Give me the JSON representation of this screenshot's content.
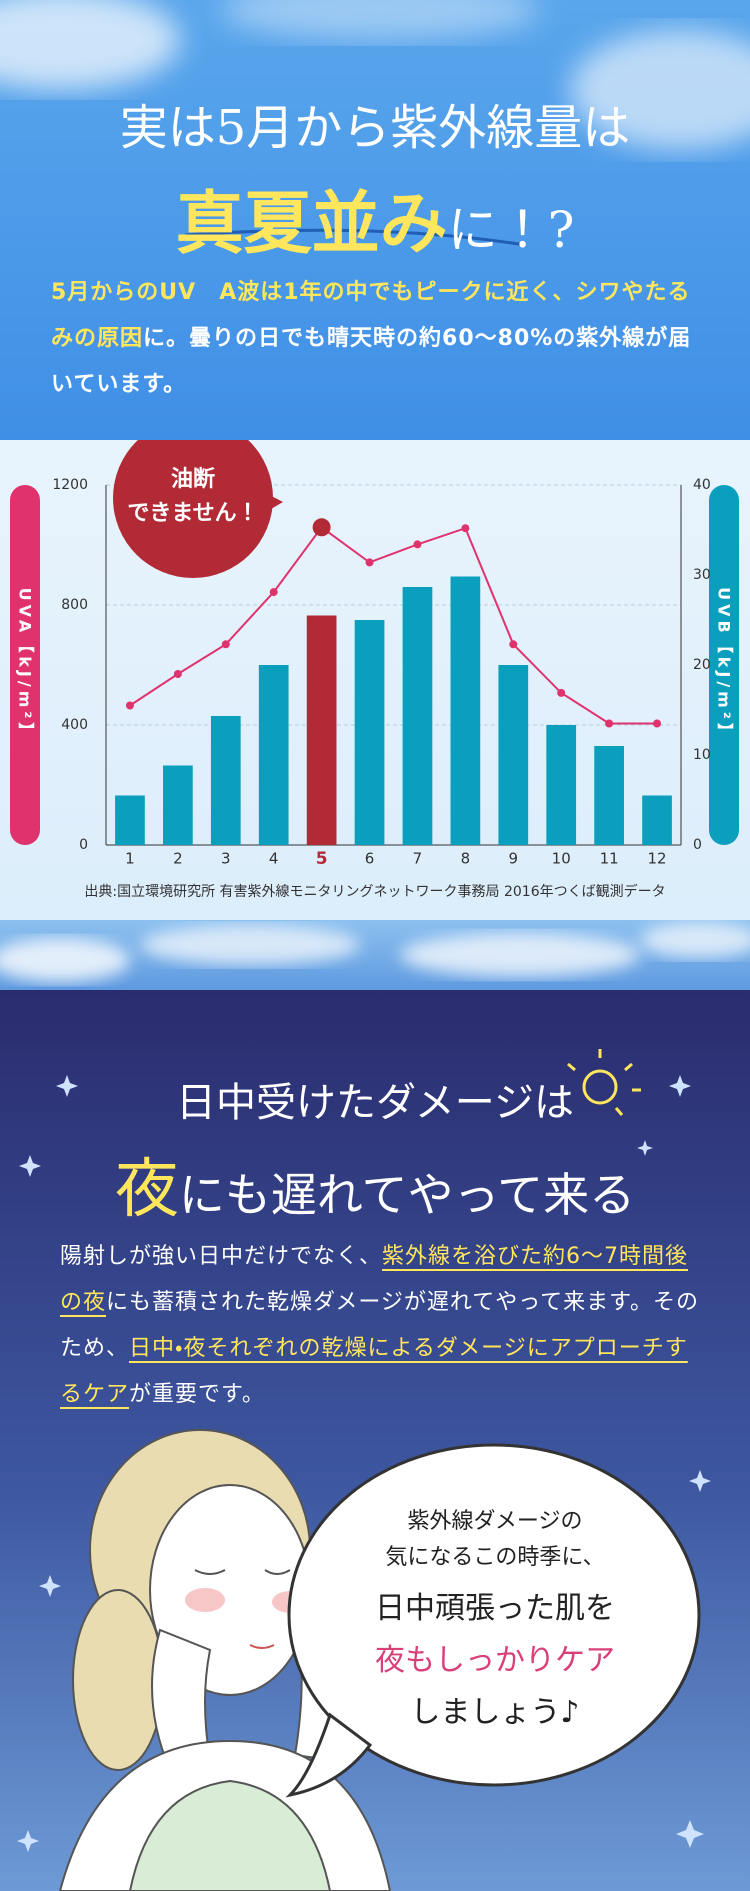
{
  "header": {
    "title_line1": "実は5月から紫外線量は",
    "title_line2": [
      {
        "text": "真夏並み",
        "emphasis": true
      },
      {
        "text": "に！?",
        "emphasis": false
      }
    ]
  },
  "intro": {
    "segments": [
      {
        "text": "5月からのUV　A波は1年の中でもピークに近く、シワやたるみの原因",
        "emphasis": true
      },
      {
        "text": "に。曇りの日でも晴天時の約60〜80%の紫外線が届いています。",
        "emphasis": false
      }
    ]
  },
  "chart_data": {
    "type": "bar",
    "categories": [
      "1",
      "2",
      "3",
      "4",
      "5",
      "6",
      "7",
      "8",
      "9",
      "10",
      "11",
      "12"
    ],
    "series": [
      {
        "type": "bar",
        "color": "#0a9fbd",
        "colors": [
          "#0a9fbd",
          "#0a9fbd",
          "#0a9fbd",
          "#0a9fbd",
          "#b22a35",
          "#0a9fbd",
          "#0a9fbd",
          "#0a9fbd",
          "#0a9fbd",
          "#0a9fbd",
          "#0a9fbd",
          "#0a9fbd"
        ],
        "values": [
          165,
          265,
          430,
          600,
          765,
          750,
          860,
          895,
          600,
          400,
          330,
          165
        ]
      },
      {
        "type": "line",
        "axis": "y2",
        "color": "#e0336e",
        "values": [
          15.5,
          19,
          22.3,
          28.1,
          35.3,
          31.4,
          33.4,
          35.2,
          22.3,
          16.9,
          13.5,
          13.5
        ]
      }
    ],
    "ylim": [
      0,
      1200
    ],
    "yticks": [
      0,
      400,
      800,
      1200
    ],
    "y2lim": [
      0,
      40
    ],
    "y2ticks": [
      0,
      10,
      20,
      30,
      40
    ],
    "ylabel": "UVA【kJ/m²】",
    "y2label": "UVB【kJ/m²】",
    "annotation": [
      "油断",
      "できません！"
    ],
    "source": "出典:国立環境研究所 有害紫外線モニタリングネットワーク事務局 2016年つくば観測データ",
    "grid": true
  },
  "section2": {
    "title_line1": "日中受けたダメージは",
    "title_line2": [
      {
        "text": "夜",
        "emphasis": true
      },
      {
        "text": "にも遅れてやって来る",
        "emphasis": false
      }
    ],
    "body": {
      "segments": [
        {
          "text": "陽射しが強い日中だけでなく、",
          "emphasis": false
        },
        {
          "text": "紫外線を浴びた約6〜7時間後の夜",
          "emphasis": true
        },
        {
          "text": "にも蓄積された乾燥ダメージが遅れてやって来ます。そのため、",
          "emphasis": false
        },
        {
          "text": "日中・夜それぞれの乾燥によるダメージにアプローチするケア",
          "emphasis": true
        },
        {
          "text": "が重要です。",
          "emphasis": false
        }
      ]
    },
    "bubble": [
      {
        "text": "紫外線ダメージの",
        "style": "small"
      },
      {
        "text": "気になるこの時季に、",
        "style": "small"
      },
      {
        "text": "日中頑張った肌を",
        "style": "large"
      },
      {
        "text": "夜もしっかりケア",
        "style": "pink"
      },
      {
        "text": "しましょう♪",
        "style": "large"
      }
    ]
  }
}
